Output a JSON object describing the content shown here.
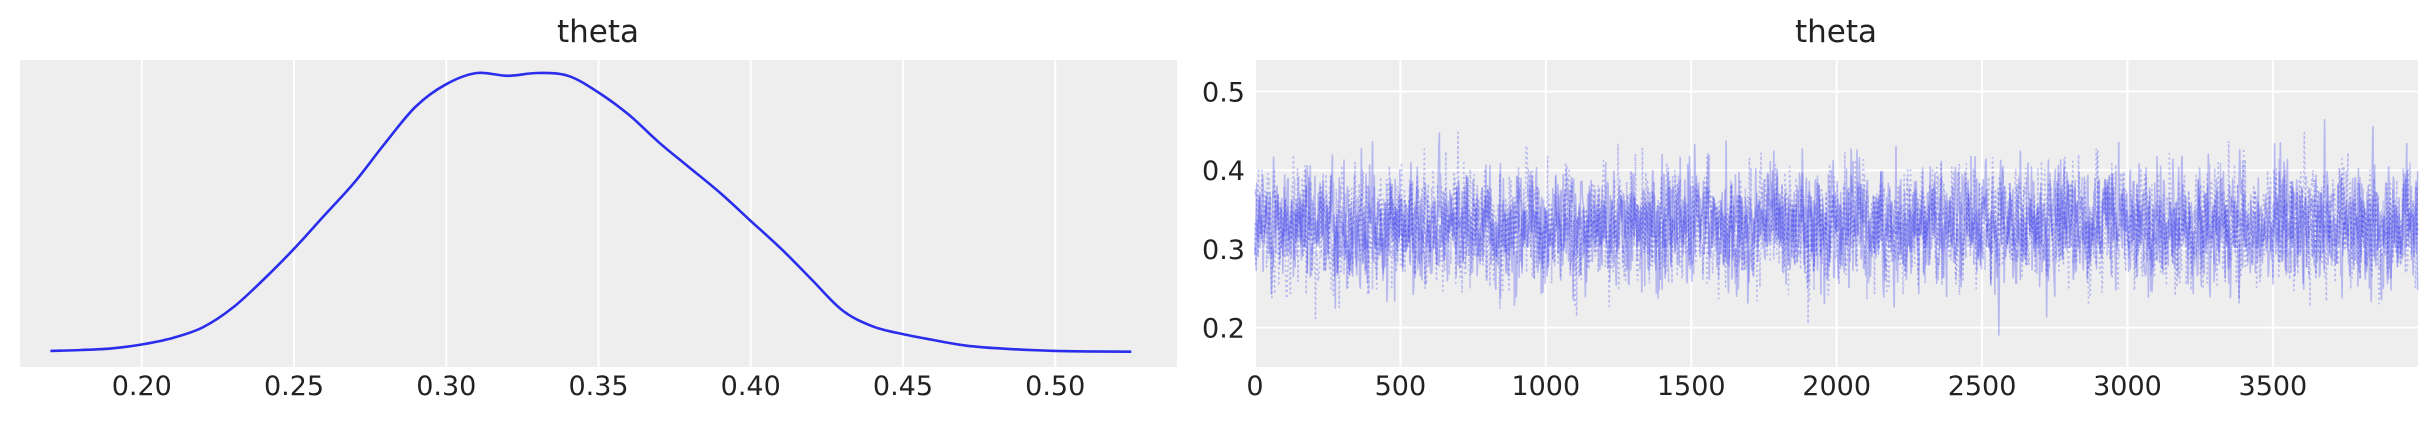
{
  "colors": {
    "series": "#2a2eec",
    "background": "#eeeeee",
    "grid": "#ffffff"
  },
  "chart_data": [
    {
      "type": "line",
      "title": "theta",
      "xlabel": "",
      "ylabel": "",
      "xlim": [
        0.16,
        0.54
      ],
      "ylim": [
        0,
        1
      ],
      "x_ticks": [
        0.2,
        0.25,
        0.3,
        0.35,
        0.4,
        0.45,
        0.5
      ],
      "x_tick_labels": [
        "0.20",
        "0.25",
        "0.30",
        "0.35",
        "0.40",
        "0.45",
        "0.50"
      ],
      "y_ticks_shown": false,
      "grid": "vertical",
      "series": [
        {
          "x": [
            0.17,
            0.18,
            0.19,
            0.2,
            0.21,
            0.22,
            0.23,
            0.24,
            0.25,
            0.26,
            0.27,
            0.28,
            0.29,
            0.3,
            0.31,
            0.32,
            0.33,
            0.34,
            0.35,
            0.36,
            0.37,
            0.38,
            0.39,
            0.4,
            0.41,
            0.42,
            0.43,
            0.44,
            0.45,
            0.46,
            0.47,
            0.48,
            0.49,
            0.5,
            0.51,
            0.525
          ],
          "y": [
            0.004,
            0.007,
            0.013,
            0.027,
            0.05,
            0.088,
            0.16,
            0.26,
            0.37,
            0.49,
            0.61,
            0.75,
            0.88,
            0.96,
            1.0,
            0.99,
            1.0,
            0.99,
            0.93,
            0.85,
            0.75,
            0.66,
            0.57,
            0.47,
            0.37,
            0.26,
            0.15,
            0.092,
            0.064,
            0.043,
            0.024,
            0.014,
            0.008,
            0.004,
            0.002,
            0.001
          ]
        }
      ]
    },
    {
      "type": "line",
      "title": "theta",
      "xlabel": "",
      "ylabel": "",
      "xlim": [
        0,
        3999
      ],
      "ylim": [
        0.15,
        0.54
      ],
      "x_ticks": [
        0,
        500,
        1000,
        1500,
        2000,
        2500,
        3000,
        3500
      ],
      "x_tick_labels": [
        "0",
        "500",
        "1000",
        "1500",
        "2000",
        "2500",
        "3000",
        "3500"
      ],
      "y_ticks": [
        0.2,
        0.3,
        0.4,
        0.5
      ],
      "y_tick_labels": [
        "0.2",
        "0.3",
        "0.4",
        "0.5"
      ],
      "grid": "both",
      "series_style": "4 chains, alternating solid and dotted, semi-transparent",
      "trace_summary": {
        "samples": 4000,
        "chains": 4,
        "center": 0.33,
        "typical_range": [
          0.24,
          0.43
        ],
        "min": 0.17,
        "max": 0.525
      }
    }
  ]
}
